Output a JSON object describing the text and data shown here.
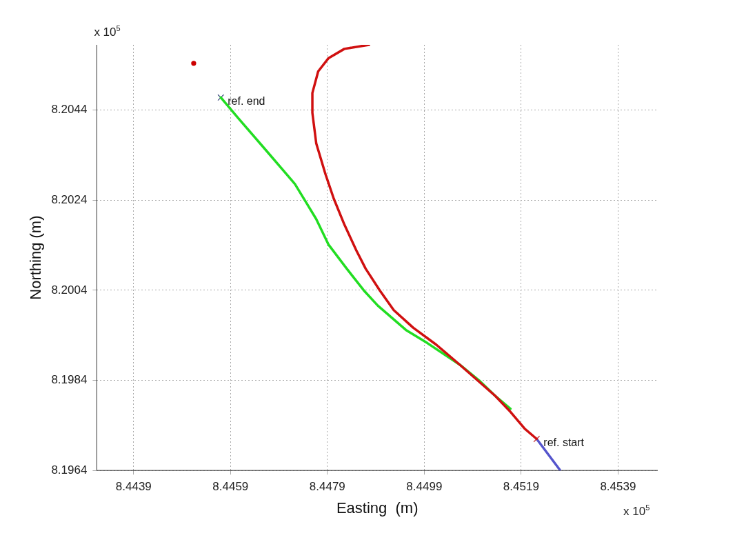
{
  "chart_data": {
    "type": "line",
    "xlabel": "Easting  (m)",
    "ylabel": "Northing (m)",
    "xlim": [
      8.44314,
      8.45472
    ],
    "ylim": [
      8.1964,
      8.20585
    ],
    "xticks": [
      8.4439,
      8.4459,
      8.4479,
      8.4499,
      8.4519,
      8.4539
    ],
    "yticks": [
      8.1964,
      8.1984,
      8.2004,
      8.2024,
      8.2044
    ],
    "grid": true,
    "legend": false,
    "line_style": "solid",
    "annotations": [
      "x 10$^{5}$",
      "x 10$^{5}$",
      {
        "text": "ref. end",
        "x": 8.4457,
        "y": 8.20468
      },
      {
        "text": "ref. start",
        "x": 8.45222,
        "y": 8.1971
      }
    ],
    "series": [
      {
        "type": "line",
        "color": "#d01010",
        "x": [
          8.44876,
          8.44825,
          8.44792,
          8.44771,
          8.44759,
          8.44759,
          8.44767,
          8.44786,
          8.44803,
          8.44825,
          8.4485,
          8.44869,
          8.44898,
          8.44927,
          8.44967,
          8.45015,
          8.45063,
          8.45136,
          8.45168,
          8.45197,
          8.45222
        ],
        "values": [
          8.20585,
          8.20576,
          8.20555,
          8.20526,
          8.20478,
          8.20434,
          8.20366,
          8.20298,
          8.20244,
          8.20186,
          8.20128,
          8.20088,
          8.2004,
          8.19996,
          8.19957,
          8.19919,
          8.19875,
          8.19806,
          8.1977,
          8.19733,
          8.1971
        ]
      },
      {
        "type": "line",
        "color": "#22dd22",
        "x": [
          8.4457,
          8.44606,
          8.44664,
          8.44723,
          8.44749,
          8.44767,
          8.44792,
          8.4483,
          8.44865,
          8.44894,
          8.44952,
          8.44996,
          8.45063,
          8.45103,
          8.45136,
          8.45168
        ],
        "values": [
          8.20468,
          8.20422,
          8.2035,
          8.20276,
          8.2023,
          8.20198,
          8.20142,
          8.20088,
          8.2004,
          8.20006,
          8.19952,
          8.19923,
          8.19875,
          8.1984,
          8.19806,
          8.19777
        ]
      },
      {
        "type": "line",
        "color": "#5555cc",
        "x": [
          8.45222,
          8.4527
        ],
        "values": [
          8.1971,
          8.19641
        ]
      },
      {
        "type": "scatter",
        "marker": "cross",
        "color": "#405080",
        "x": [
          8.4457
        ],
        "values": [
          8.20468
        ]
      },
      {
        "type": "scatter",
        "marker": "cross",
        "color": "#c83c3c",
        "x": [
          8.45222
        ],
        "values": [
          8.1971
        ]
      },
      {
        "type": "scatter",
        "marker": "circle",
        "color": "#cc0000",
        "x": [
          8.44514
        ],
        "values": [
          8.20544
        ]
      }
    ]
  }
}
